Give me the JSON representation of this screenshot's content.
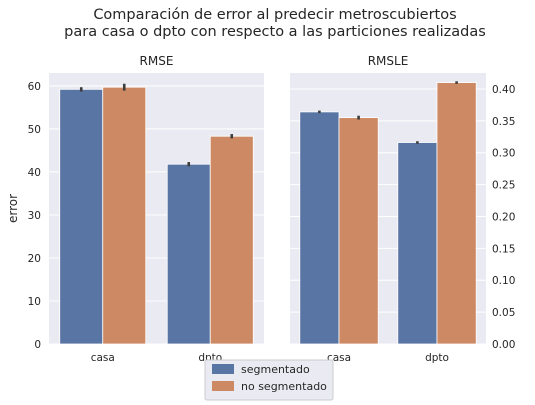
{
  "title": {
    "line1": "Comparación de error al predecir metroscubiertos",
    "line2": "para casa o dpto con respecto a las particiones realizadas"
  },
  "legend": {
    "items": [
      {
        "label": "segmentado",
        "color": "#5975a4"
      },
      {
        "label": "no segmentado",
        "color": "#cc8963"
      }
    ]
  },
  "chart_data": [
    {
      "type": "bar",
      "title": "RMSE",
      "ylabel": "error",
      "categories": [
        "casa",
        "dpto"
      ],
      "series": [
        {
          "name": "segmentado",
          "values": [
            59.2,
            41.8
          ],
          "err": [
            0.5,
            0.5
          ],
          "color": "#5975a4"
        },
        {
          "name": "no segmentado",
          "values": [
            59.7,
            48.3
          ],
          "err": [
            0.8,
            0.5
          ],
          "color": "#cc8963"
        }
      ],
      "ylim": [
        0,
        63
      ],
      "yticks": [
        "0",
        "10",
        "20",
        "30",
        "40",
        "50",
        "60"
      ],
      "ytick_values": [
        0,
        10,
        20,
        30,
        40,
        50,
        60
      ],
      "grid": true
    },
    {
      "type": "bar",
      "title": "RMSLE",
      "ylabel": "",
      "categories": [
        "casa",
        "dpto"
      ],
      "series": [
        {
          "name": "segmentado",
          "values": [
            0.364,
            0.316
          ],
          "err": [
            0.002,
            0.002
          ],
          "color": "#5975a4"
        },
        {
          "name": "no segmentado",
          "values": [
            0.355,
            0.41
          ],
          "err": [
            0.003,
            0.002
          ],
          "color": "#cc8963"
        }
      ],
      "ylim": [
        0,
        0.425
      ],
      "yticks": [
        "0.00",
        "0.05",
        "0.10",
        "0.15",
        "0.20",
        "0.25",
        "0.30",
        "0.35",
        "0.40"
      ],
      "ytick_values": [
        0,
        0.05,
        0.1,
        0.15,
        0.2,
        0.25,
        0.3,
        0.35,
        0.4
      ],
      "grid": true
    }
  ]
}
